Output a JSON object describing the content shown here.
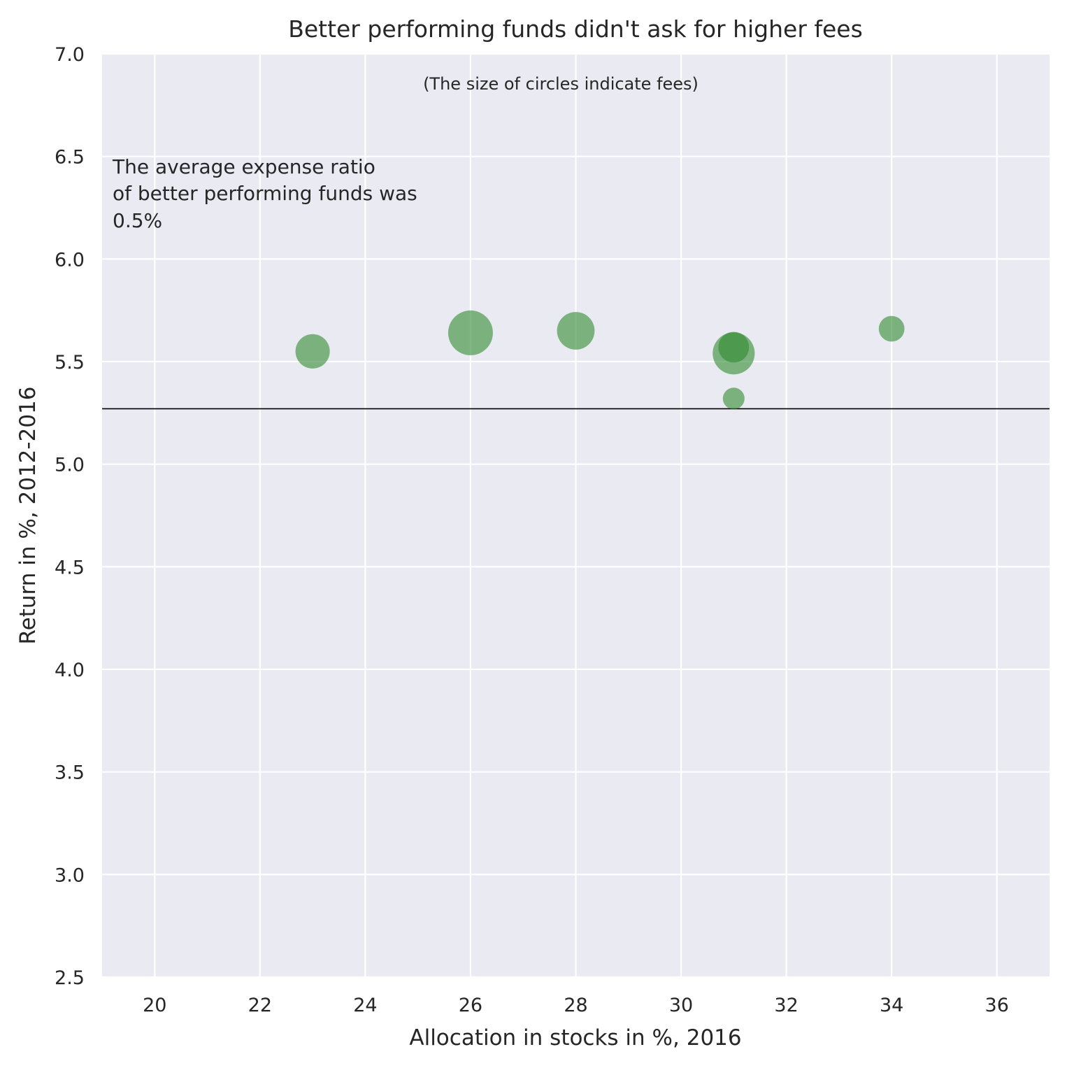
{
  "chart_data": {
    "type": "scatter",
    "title": "Better performing funds didn't ask for higher fees",
    "subtitle": "(The size of circles indicate fees)",
    "annotation": [
      "The average expense ratio",
      "of better performing funds was",
      "0.5%"
    ],
    "xlabel": "Allocation in stocks in %, 2016",
    "ylabel": "Return in %, 2012-2016",
    "xlim": [
      19,
      37
    ],
    "ylim": [
      2.5,
      7.0
    ],
    "x_ticks": [
      20,
      22,
      24,
      26,
      28,
      30,
      32,
      34,
      36
    ],
    "y_ticks": [
      2.5,
      3.0,
      3.5,
      4.0,
      4.5,
      5.0,
      5.5,
      6.0,
      6.5,
      7.0
    ],
    "x_tick_labels": [
      "20",
      "22",
      "24",
      "26",
      "28",
      "30",
      "32",
      "34",
      "36"
    ],
    "y_tick_labels": [
      "2.5",
      "3.0",
      "3.5",
      "4.0",
      "4.5",
      "5.0",
      "5.5",
      "6.0",
      "6.5",
      "7.0"
    ],
    "reference_line_y": 5.27,
    "grid": true,
    "marker_color": "#2e8b2e",
    "background_color": "#eaeaf2",
    "points": [
      {
        "x": 23,
        "y": 5.55,
        "fee": 0.5
      },
      {
        "x": 26,
        "y": 5.64,
        "fee": 0.85
      },
      {
        "x": 28,
        "y": 5.65,
        "fee": 0.6
      },
      {
        "x": 31,
        "y": 5.54,
        "fee": 0.75
      },
      {
        "x": 31,
        "y": 5.57,
        "fee": 0.4
      },
      {
        "x": 31,
        "y": 5.32,
        "fee": 0.2
      },
      {
        "x": 34,
        "y": 5.66,
        "fee": 0.28
      }
    ]
  }
}
